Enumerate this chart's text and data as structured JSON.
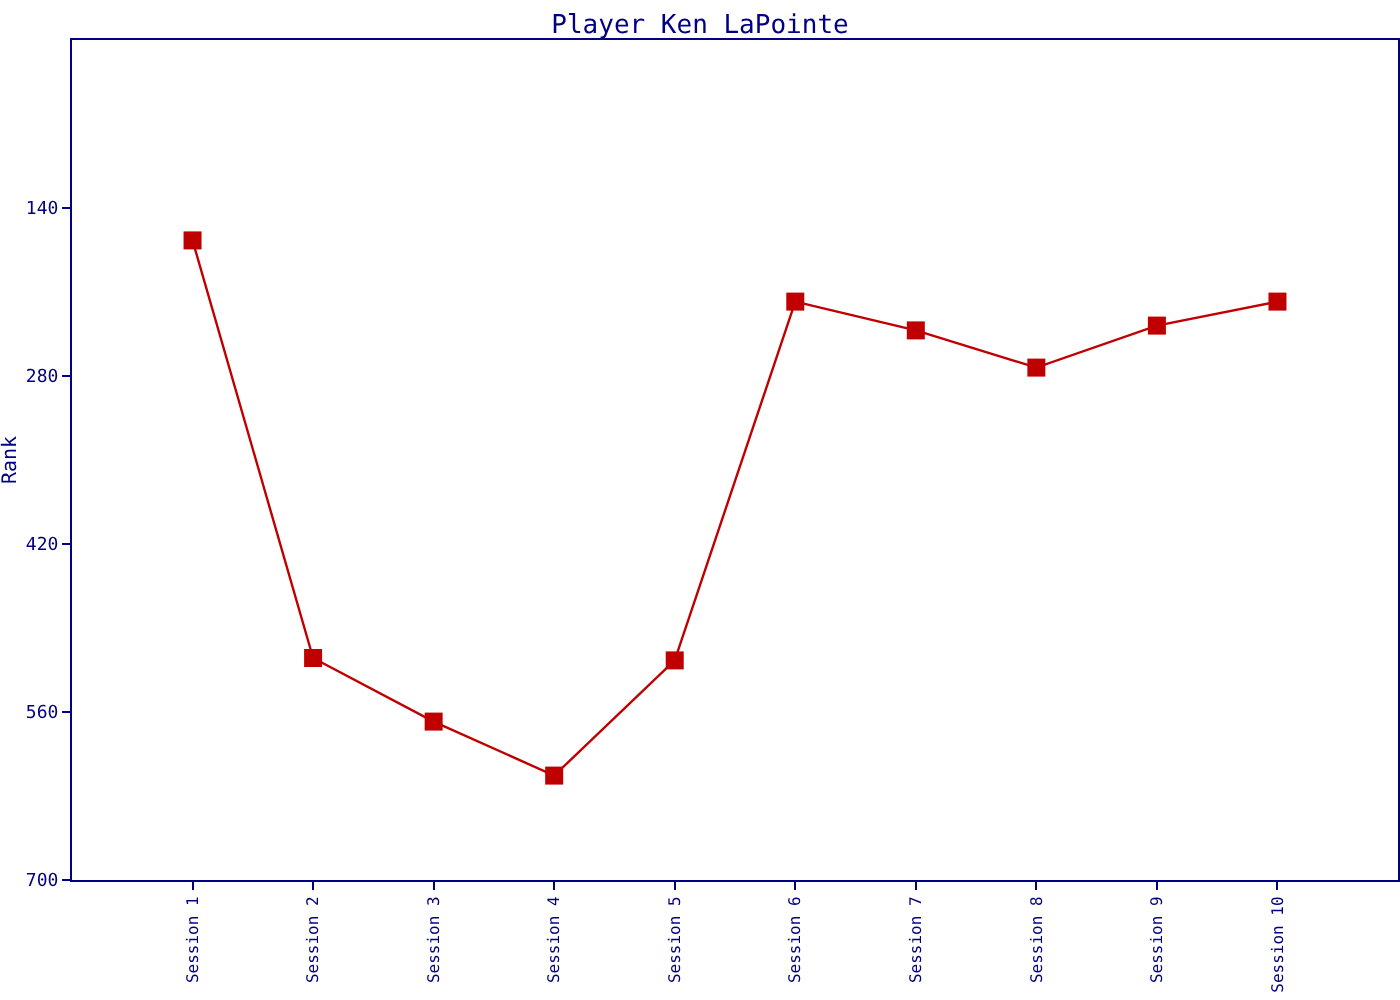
{
  "chart_data": {
    "type": "line",
    "title": "Player Ken LaPointe",
    "ylabel": "Rank",
    "categories": [
      "Session 1",
      "Session 2",
      "Session 3",
      "Session 4",
      "Session 5",
      "Session 6",
      "Session 7",
      "Session 8",
      "Session 9",
      "Session 10"
    ],
    "series": [
      {
        "color": "#c00000",
        "values": [
          167,
          515,
          568,
          613,
          517,
          218,
          242,
          273,
          238,
          218
        ]
      }
    ],
    "ylim": [
      700,
      0
    ],
    "yticks": [
      140,
      280,
      420,
      560,
      700
    ],
    "marker": "square",
    "line_style": "solid"
  }
}
